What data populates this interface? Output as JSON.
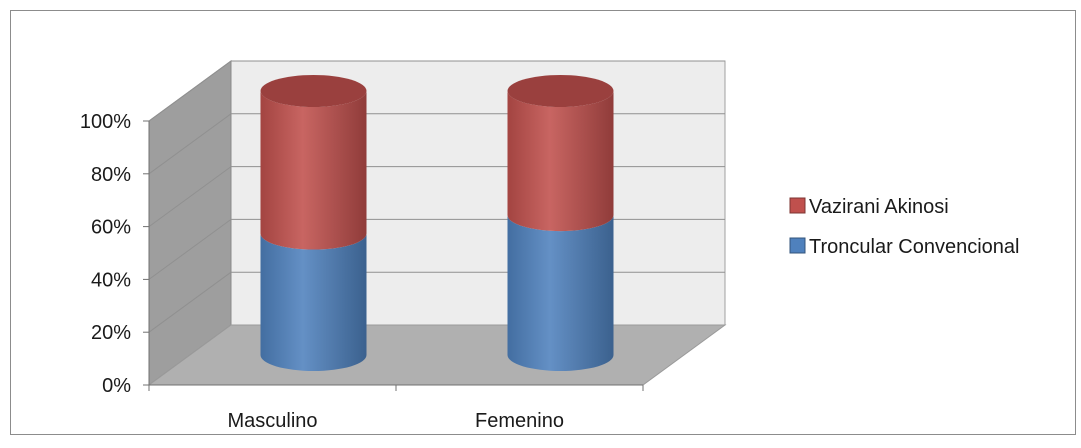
{
  "chart_data": {
    "type": "bar",
    "stacked": true,
    "three_d": true,
    "bar_shape": "cylinder",
    "categories": [
      "Masculino",
      "Femenino"
    ],
    "series": [
      {
        "name": "Troncular Convencional",
        "values": [
          46,
          53
        ],
        "color": "#4f81bd"
      },
      {
        "name": "Vazirani Akinosi",
        "values": [
          54,
          47
        ],
        "color": "#c0504d"
      }
    ],
    "y_ticks": [
      "0%",
      "20%",
      "40%",
      "60%",
      "80%",
      "100%"
    ],
    "ylim": [
      0,
      100
    ],
    "grid": true,
    "legend_position": "right",
    "colors": {
      "wall": "#ededed",
      "side_wall": "#9e9e9e",
      "floor": "#b0b0b0",
      "grid": "#909090"
    }
  }
}
